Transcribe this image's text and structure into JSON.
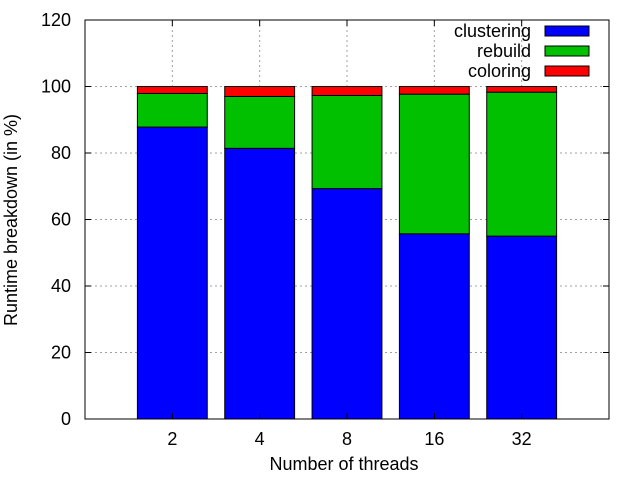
{
  "chart_data": {
    "type": "bar",
    "stacked": true,
    "title": "",
    "xlabel": "Number of threads",
    "ylabel": "Runtime breakdown (in %)",
    "categories": [
      "2",
      "4",
      "8",
      "16",
      "32"
    ],
    "ylim": [
      0,
      120
    ],
    "yticks": [
      0,
      20,
      40,
      60,
      80,
      100,
      120
    ],
    "grid": true,
    "legend_position": "top-right",
    "series": [
      {
        "name": "clustering",
        "color": "#0000ff",
        "values": [
          87.8,
          81.4,
          69.3,
          55.7,
          55.0
        ]
      },
      {
        "name": "rebuild",
        "color": "#00c000",
        "values": [
          10.1,
          15.6,
          28.0,
          42.0,
          43.3
        ]
      },
      {
        "name": "coloring",
        "color": "#ff0000",
        "values": [
          2.1,
          3.0,
          2.7,
          2.3,
          1.7
        ]
      }
    ]
  }
}
